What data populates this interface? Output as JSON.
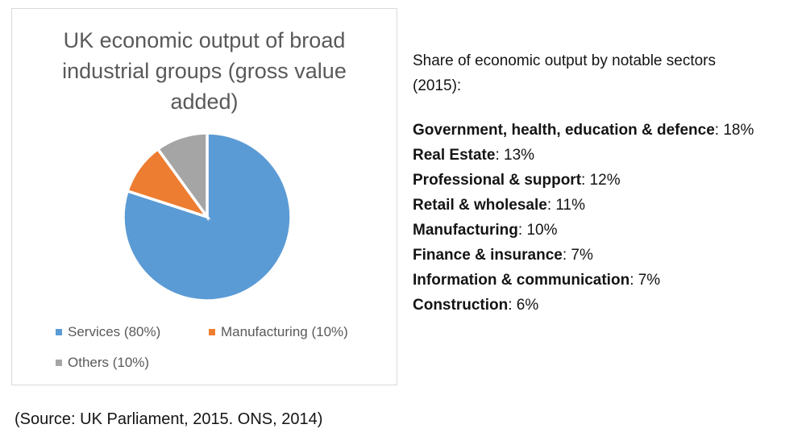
{
  "chart_data": {
    "type": "pie",
    "title": "UK economic output of broad industrial groups (gross value added)",
    "title_lines": [
      "UK economic output of broad",
      "industrial groups (gross value",
      "added)"
    ],
    "slices": [
      {
        "label": "Services",
        "value": 80,
        "legend_label": "Services (80%)",
        "color": "#5B9BD5"
      },
      {
        "label": "Manufacturing",
        "value": 10,
        "legend_label": "Manufacturing (10%)",
        "color": "#ED7D31"
      },
      {
        "label": "Others",
        "value": 10,
        "legend_label": "Others (10%)",
        "color": "#A5A5A5"
      }
    ],
    "start_angle_deg": 0,
    "direction": "clockwise",
    "legend_position": "bottom",
    "slice_border_color": "#FFFFFF",
    "title_color": "#595959",
    "legend_text_color": "#595959",
    "panel_border_color": "#D9D9D9"
  },
  "side_panel": {
    "heading_lines": [
      "Share of economic output by notable sectors",
      "(2015):"
    ],
    "separator": ": ",
    "sectors": [
      {
        "name": "Government, health, education & defence",
        "value": "18%"
      },
      {
        "name": "Real Estate",
        "value": "13%"
      },
      {
        "name": "Professional & support",
        "value": "12%"
      },
      {
        "name": "Retail & wholesale",
        "value": "11%"
      },
      {
        "name": "Manufacturing",
        "value": "10%"
      },
      {
        "name": "Finance & insurance",
        "value": "7%"
      },
      {
        "name": "Information & communication",
        "value": "7%"
      },
      {
        "name": "Construction",
        "value": "6%"
      }
    ]
  },
  "source_note": "(Source: UK Parliament, 2015. ONS, 2014)"
}
